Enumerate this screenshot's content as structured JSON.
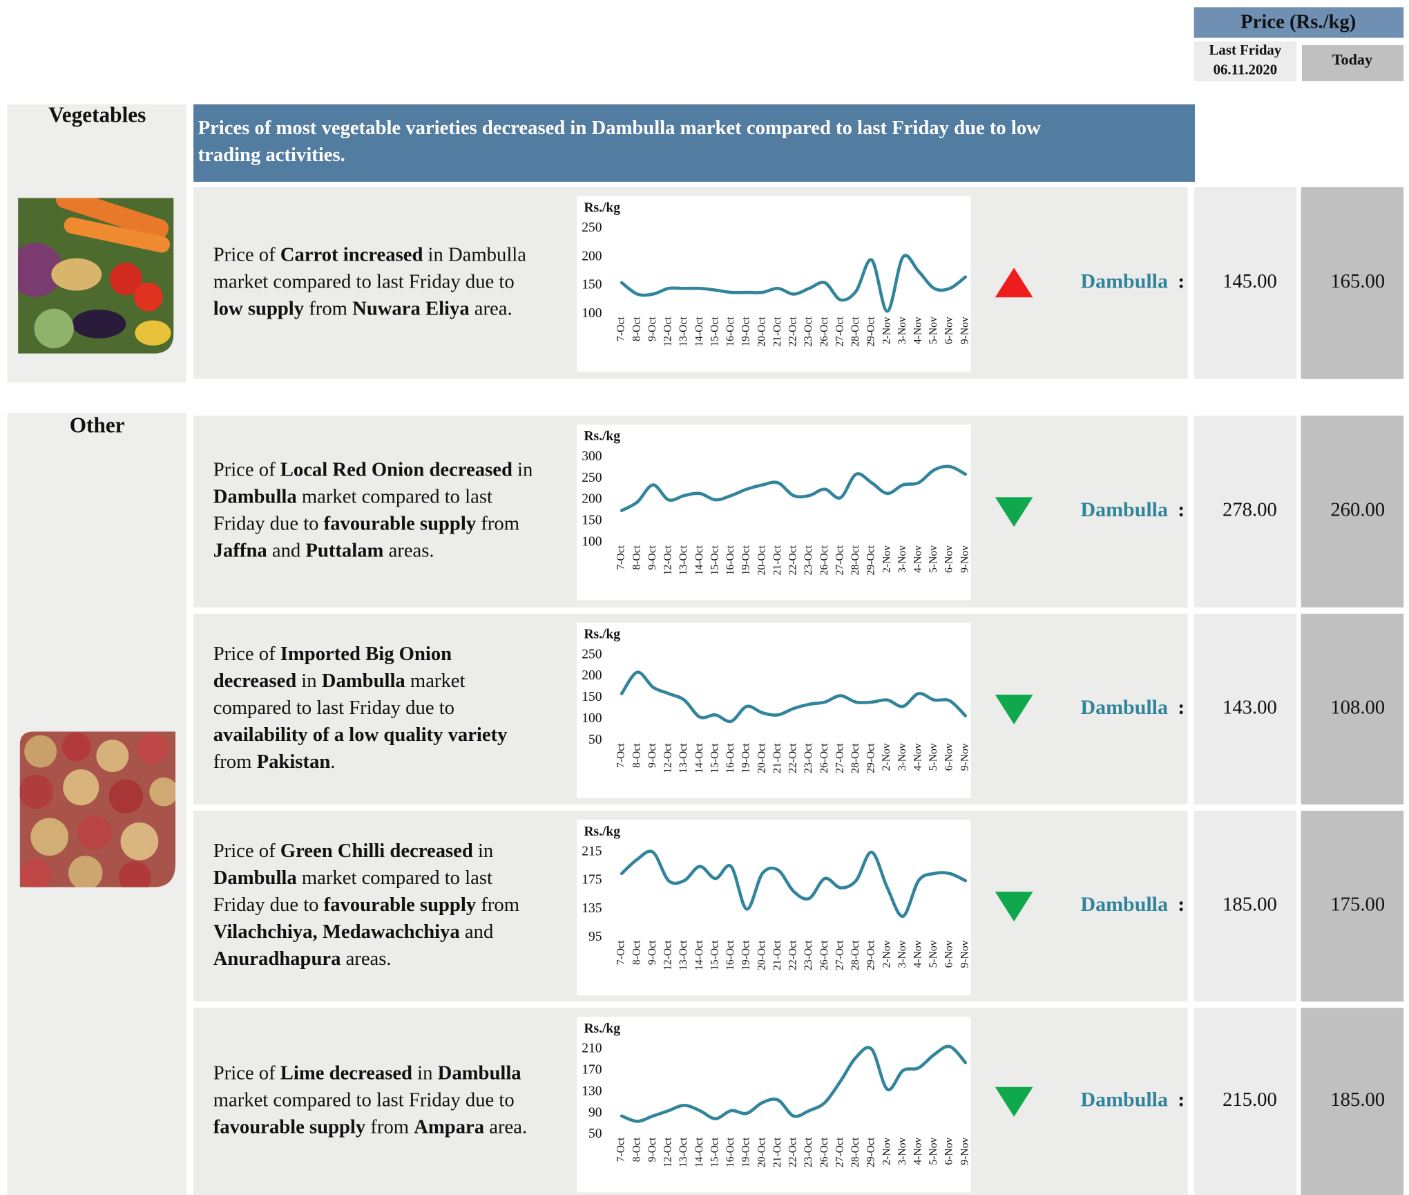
{
  "header": {
    "price_title": "Price (Rs./kg)",
    "last_friday": "Last Friday",
    "last_friday_date": "06.11.2020",
    "today": "Today"
  },
  "sections": [
    {
      "name": "Vegetables",
      "summary": [
        "Prices of most vegetable varieties decreased in Dambulla market compared to last Friday due to low",
        "trading activities."
      ],
      "items": [
        {
          "lines": [
            [
              {
                "t": "Price of "
              },
              {
                "t": "Carrot increased",
                "b": true
              },
              {
                "t": " in Dambulla"
              }
            ],
            [
              {
                "t": "market compared to last Friday due to"
              }
            ],
            [
              {
                "t": "low supply",
                "b": true
              },
              {
                "t": " from "
              },
              {
                "t": "Nuwara Eliya",
                "b": true
              },
              {
                "t": " area."
              }
            ]
          ],
          "trend": "up",
          "market": "Dambulla",
          "colon": ":",
          "last_friday": "145.00",
          "today": "165.00",
          "chart": {
            "type": "line",
            "y_label": "Rs./kg",
            "color": "#31849b",
            "grid": false,
            "categories": [
              "7-Oct",
              "8-Oct",
              "9-Oct",
              "12-Oct",
              "13-Oct",
              "14-Oct",
              "15-Oct",
              "16-Oct",
              "19-Oct",
              "20-Oct",
              "21-Oct",
              "22-Oct",
              "23-Oct",
              "26-Oct",
              "27-Oct",
              "28-Oct",
              "29-Oct",
              "2-Nov",
              "3-Nov",
              "4-Nov",
              "5-Nov",
              "6-Nov",
              "9-Nov"
            ],
            "values": [
              155,
              135,
              135,
              145,
              145,
              145,
              142,
              138,
              138,
              138,
              145,
              135,
              145,
              155,
              125,
              140,
              195,
              105,
              200,
              175,
              145,
              145,
              165
            ],
            "ylim": [
              100,
              250
            ],
            "yticks": [
              100,
              150,
              200,
              250
            ]
          }
        }
      ]
    },
    {
      "name": "Other",
      "items": [
        {
          "lines": [
            [
              {
                "t": "Price of "
              },
              {
                "t": "Local Red Onion decreased",
                "b": true
              },
              {
                "t": " in"
              }
            ],
            [
              {
                "t": "Dambulla",
                "b": true
              },
              {
                "t": " market compared to last"
              }
            ],
            [
              {
                "t": "Friday due to "
              },
              {
                "t": "favourable supply",
                "b": true
              },
              {
                "t": " from"
              }
            ],
            [
              {
                "t": "Jaffna",
                "b": true
              },
              {
                "t": " and "
              },
              {
                "t": "Puttalam",
                "b": true
              },
              {
                "t": " areas."
              }
            ]
          ],
          "trend": "down",
          "market": "Dambulla",
          "colon": ":",
          "last_friday": "278.00",
          "today": "260.00",
          "chart": {
            "type": "line",
            "y_label": "Rs./kg",
            "color": "#31849b",
            "grid": false,
            "categories": [
              "7-Oct",
              "8-Oct",
              "9-Oct",
              "12-Oct",
              "13-Oct",
              "14-Oct",
              "15-Oct",
              "16-Oct",
              "19-Oct",
              "20-Oct",
              "21-Oct",
              "22-Oct",
              "23-Oct",
              "26-Oct",
              "27-Oct",
              "28-Oct",
              "29-Oct",
              "2-Nov",
              "3-Nov",
              "4-Nov",
              "5-Nov",
              "6-Nov",
              "9-Nov"
            ],
            "values": [
              175,
              195,
              235,
              200,
              210,
              215,
              200,
              210,
              225,
              235,
              240,
              210,
              210,
              225,
              205,
              260,
              240,
              215,
              235,
              240,
              270,
              278,
              260
            ],
            "ylim": [
              100,
              300
            ],
            "yticks": [
              100,
              150,
              200,
              250,
              300
            ]
          }
        },
        {
          "lines": [
            [
              {
                "t": "Price of "
              },
              {
                "t": "Imported Big Onion",
                "b": true
              }
            ],
            [
              {
                "t": "decreased",
                "b": true
              },
              {
                "t": " in "
              },
              {
                "t": "Dambulla",
                "b": true
              },
              {
                "t": " market"
              }
            ],
            [
              {
                "t": "compared to last Friday due to"
              }
            ],
            [
              {
                "t": "availability of a low quality variety",
                "b": true
              }
            ],
            [
              {
                "t": "from "
              },
              {
                "t": "Pakistan",
                "b": true
              },
              {
                "t": "."
              }
            ]
          ],
          "trend": "down",
          "market": "Dambulla",
          "colon": ":",
          "last_friday": "143.00",
          "today": "108.00",
          "chart": {
            "type": "line",
            "y_label": "Rs./kg",
            "color": "#31849b",
            "grid": false,
            "categories": [
              "7-Oct",
              "8-Oct",
              "9-Oct",
              "12-Oct",
              "13-Oct",
              "14-Oct",
              "15-Oct",
              "16-Oct",
              "19-Oct",
              "20-Oct",
              "21-Oct",
              "22-Oct",
              "23-Oct",
              "26-Oct",
              "27-Oct",
              "28-Oct",
              "29-Oct",
              "2-Nov",
              "3-Nov",
              "4-Nov",
              "5-Nov",
              "6-Nov",
              "9-Nov"
            ],
            "values": [
              160,
              210,
              175,
              160,
              145,
              105,
              110,
              95,
              130,
              115,
              110,
              125,
              135,
              140,
              155,
              140,
              140,
              145,
              130,
              160,
              145,
              143,
              108
            ],
            "ylim": [
              50,
              250
            ],
            "yticks": [
              50,
              100,
              150,
              200,
              250
            ]
          }
        },
        {
          "lines": [
            [
              {
                "t": "Price of "
              },
              {
                "t": "Green Chilli decreased",
                "b": true
              },
              {
                "t": " in"
              }
            ],
            [
              {
                "t": "Dambulla",
                "b": true
              },
              {
                "t": " market compared to last"
              }
            ],
            [
              {
                "t": "Friday due to "
              },
              {
                "t": "favourable supply",
                "b": true
              },
              {
                "t": " from"
              }
            ],
            [
              {
                "t": "Vilachchiya, Medawachchiya",
                "b": true
              },
              {
                "t": " and"
              }
            ],
            [
              {
                "t": "Anuradhapura",
                "b": true
              },
              {
                "t": " areas."
              }
            ]
          ],
          "trend": "down",
          "market": "Dambulla",
          "colon": ":",
          "last_friday": "185.00",
          "today": "175.00",
          "chart": {
            "type": "line",
            "y_label": "Rs./kg",
            "color": "#31849b",
            "grid": false,
            "categories": [
              "7-Oct",
              "8-Oct",
              "9-Oct",
              "12-Oct",
              "13-Oct",
              "14-Oct",
              "15-Oct",
              "16-Oct",
              "19-Oct",
              "20-Oct",
              "21-Oct",
              "22-Oct",
              "23-Oct",
              "26-Oct",
              "27-Oct",
              "28-Oct",
              "29-Oct",
              "2-Nov",
              "3-Nov",
              "4-Nov",
              "5-Nov",
              "6-Nov",
              "9-Nov"
            ],
            "values": [
              185,
              205,
              215,
              175,
              175,
              195,
              178,
              195,
              135,
              185,
              190,
              160,
              150,
              178,
              165,
              175,
              215,
              165,
              125,
              175,
              185,
              185,
              175
            ],
            "ylim": [
              95,
              215
            ],
            "yticks": [
              95,
              135,
              175,
              215
            ]
          }
        },
        {
          "lines": [
            [
              {
                "t": "Price of "
              },
              {
                "t": "Lime decreased",
                "b": true
              },
              {
                "t": " in "
              },
              {
                "t": "Dambulla",
                "b": true
              }
            ],
            [
              {
                "t": "market compared to last Friday due to"
              }
            ],
            [
              {
                "t": "favourable supply",
                "b": true
              },
              {
                "t": " from "
              },
              {
                "t": "Ampara",
                "b": true
              },
              {
                "t": " area."
              }
            ]
          ],
          "trend": "down",
          "market": "Dambulla",
          "colon": ":",
          "last_friday": "215.00",
          "today": "185.00",
          "chart": {
            "type": "line",
            "y_label": "Rs./kg",
            "color": "#31849b",
            "grid": false,
            "categories": [
              "7-Oct",
              "8-Oct",
              "9-Oct",
              "12-Oct",
              "13-Oct",
              "14-Oct",
              "15-Oct",
              "16-Oct",
              "19-Oct",
              "20-Oct",
              "21-Oct",
              "22-Oct",
              "23-Oct",
              "26-Oct",
              "27-Oct",
              "28-Oct",
              "29-Oct",
              "2-Nov",
              "3-Nov",
              "4-Nov",
              "5-Nov",
              "6-Nov",
              "9-Nov"
            ],
            "values": [
              85,
              75,
              85,
              95,
              105,
              95,
              80,
              95,
              90,
              110,
              115,
              85,
              95,
              110,
              150,
              195,
              210,
              135,
              170,
              175,
              200,
              215,
              185
            ],
            "ylim": [
              50,
              210
            ],
            "yticks": [
              50,
              90,
              130,
              170,
              210
            ]
          }
        }
      ]
    }
  ]
}
